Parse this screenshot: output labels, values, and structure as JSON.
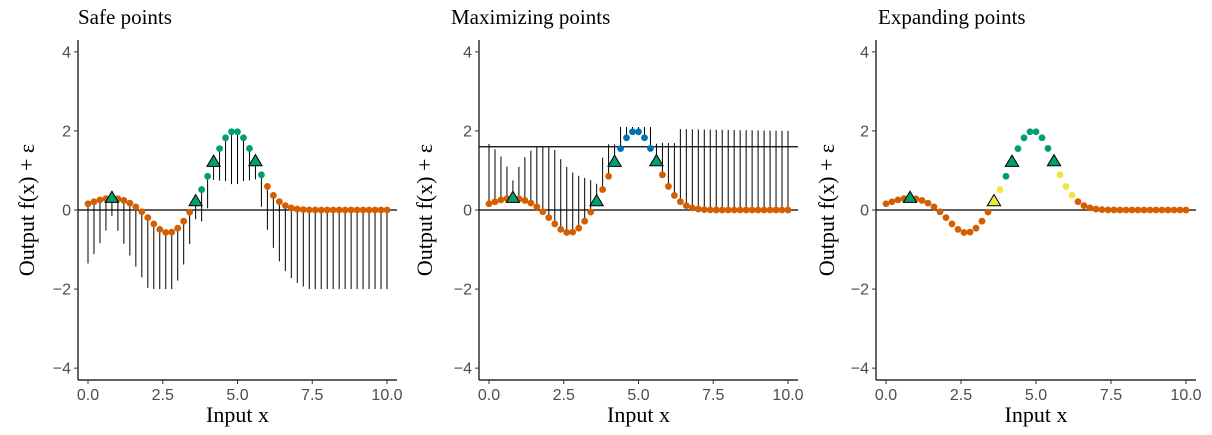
{
  "chart_data": [
    {
      "type": "scatter",
      "title": "Safe points",
      "xlabel": "Input x",
      "ylabel": "Output f(x) + ε",
      "xlim": [
        0,
        10
      ],
      "ylim": [
        -4.3,
        4.3
      ],
      "xticks": [
        0,
        2.5,
        5,
        7.5,
        10
      ],
      "xtick_labels": [
        "0.0",
        "2.5",
        "5.0",
        "7.5",
        "10.0"
      ],
      "yticks": [
        -4,
        -2,
        0,
        2,
        4
      ],
      "ytick_labels": [
        "−4",
        "−2",
        "0",
        "2",
        "4"
      ],
      "hline": 0,
      "intervals": "lower",
      "colored_range": [
        3.6,
        5.8
      ],
      "colored_color": "#009E73",
      "triangles": [
        {
          "x": 0.8,
          "fill": "#009E73"
        },
        {
          "x": 3.6,
          "fill": "#009E73"
        },
        {
          "x": 4.2,
          "fill": "#009E73"
        },
        {
          "x": 5.6,
          "fill": "#009E73"
        }
      ]
    },
    {
      "type": "scatter",
      "title": "Maximizing points",
      "xlabel": "Input x",
      "ylabel": "Output f(x) + ε",
      "xlim": [
        0,
        10
      ],
      "ylim": [
        -4.3,
        4.3
      ],
      "xticks": [
        0,
        2.5,
        5,
        7.5,
        10
      ],
      "xtick_labels": [
        "0.0",
        "2.5",
        "5.0",
        "7.5",
        "10.0"
      ],
      "yticks": [
        -4,
        -2,
        0,
        2,
        4
      ],
      "ytick_labels": [
        "−4",
        "−2",
        "0",
        "2",
        "4"
      ],
      "hline": 0,
      "hline_max": 1.6,
      "intervals": "upper",
      "colored_range": [
        4.2,
        5.6
      ],
      "colored_color": "#0072B2",
      "triangles": [
        {
          "x": 0.8,
          "fill": "#009E73"
        },
        {
          "x": 3.6,
          "fill": "#009E73"
        },
        {
          "x": 4.2,
          "fill": "#009E73"
        },
        {
          "x": 5.6,
          "fill": "#009E73"
        }
      ]
    },
    {
      "type": "scatter",
      "title": "Expanding points",
      "xlabel": "Input x",
      "ylabel": "Output f(x) + ε",
      "xlim": [
        0,
        10
      ],
      "ylim": [
        -4.3,
        4.3
      ],
      "xticks": [
        0,
        2.5,
        5,
        7.5,
        10
      ],
      "xtick_labels": [
        "0.0",
        "2.5",
        "5.0",
        "7.5",
        "10.0"
      ],
      "yticks": [
        -4,
        -2,
        0,
        2,
        4
      ],
      "ytick_labels": [
        "−4",
        "−2",
        "0",
        "2",
        "4"
      ],
      "hline": 0,
      "intervals": "none",
      "colored_range": [
        3.6,
        6.2
      ],
      "colored_color": "#009E73",
      "edge_color": "#F0E442",
      "edge_points": [
        3.6,
        3.8,
        5.8,
        6.0,
        6.2
      ],
      "triangles": [
        {
          "x": 0.8,
          "fill": "#009E73"
        },
        {
          "x": 3.6,
          "fill": "#F0E442"
        },
        {
          "x": 4.2,
          "fill": "#009E73"
        },
        {
          "x": 5.6,
          "fill": "#009E73"
        }
      ]
    }
  ],
  "colors": {
    "base_points": "#D55E00",
    "safe": "#009E73",
    "maximizer": "#0072B2",
    "expander": "#F0E442",
    "interval": "#000000",
    "tick_text": "#4d4d4d"
  }
}
